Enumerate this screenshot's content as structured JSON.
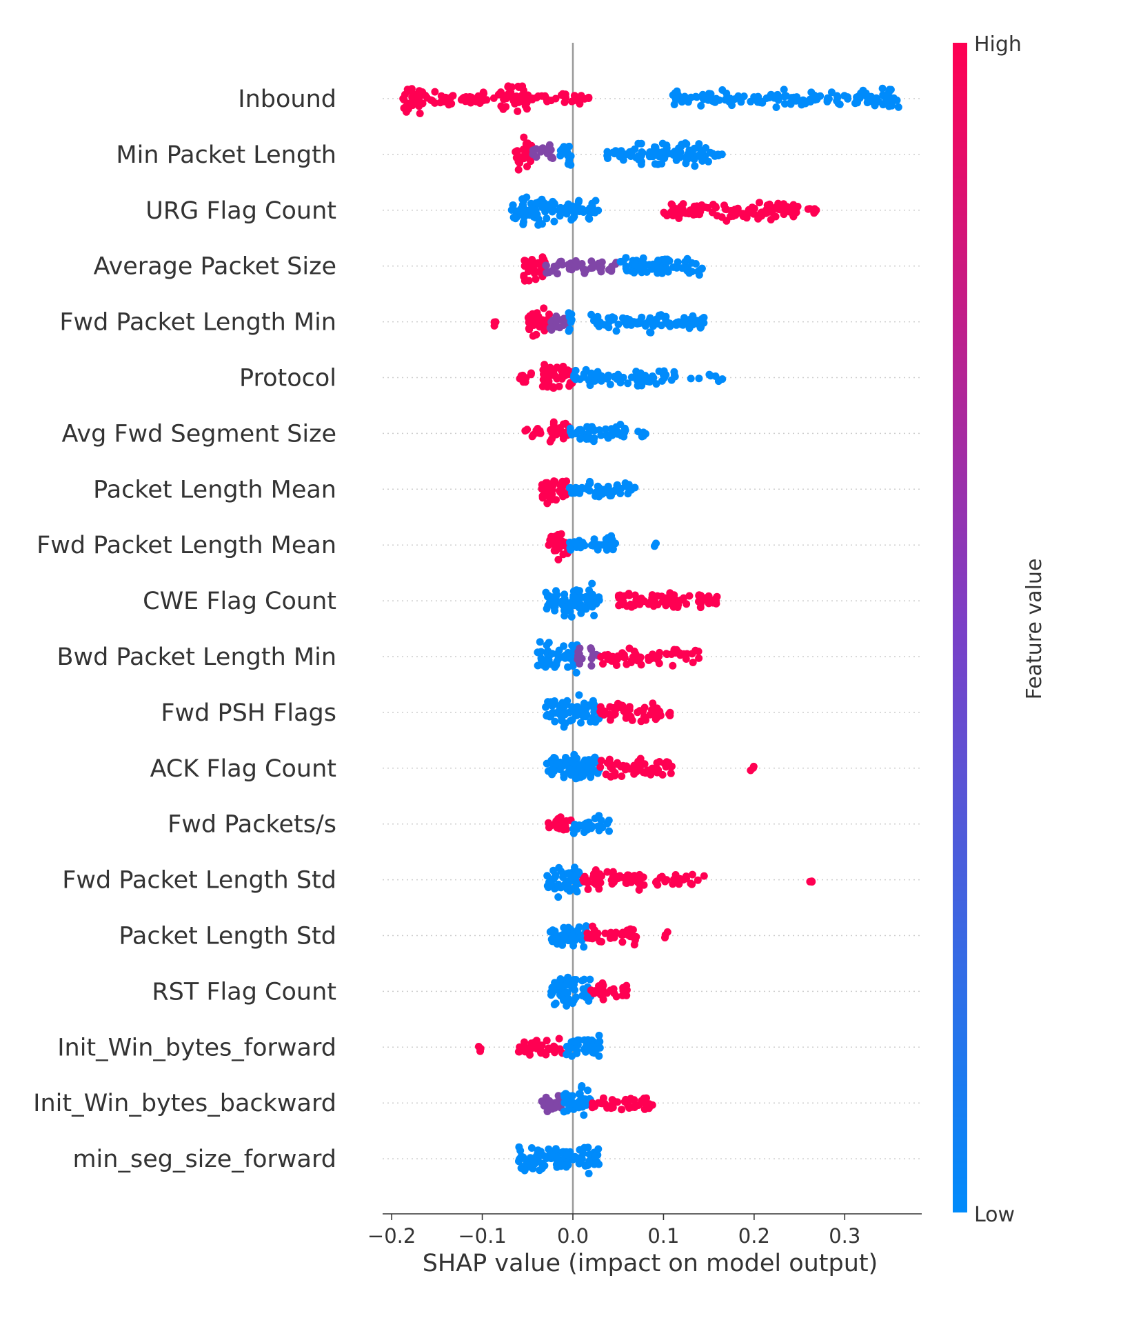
{
  "chart_data": {
    "type": "scatter",
    "title": "",
    "xlabel": "SHAP value (impact on model output)",
    "xlim": [
      -0.21,
      0.385
    ],
    "x_ticks": [
      -0.2,
      -0.1,
      0.0,
      0.1,
      0.2,
      0.3
    ],
    "x_tick_labels": [
      "−0.2",
      "−0.1",
      "0.0",
      "0.1",
      "0.2",
      "0.3"
    ],
    "colorbar": {
      "label": "Feature value",
      "high_label": "High",
      "low_label": "Low",
      "high_color": "#ff0052",
      "low_color": "#008bfb"
    },
    "features": [
      {
        "name": "Inbound",
        "segments": [
          {
            "from": -0.19,
            "to": -0.16,
            "color": "high",
            "density": 1.0
          },
          {
            "from": -0.16,
            "to": -0.08,
            "color": "high",
            "density": 0.35
          },
          {
            "from": -0.08,
            "to": -0.05,
            "color": "high",
            "density": 0.9
          },
          {
            "from": -0.05,
            "to": 0.02,
            "color": "high",
            "density": 0.3
          },
          {
            "from": 0.11,
            "to": 0.34,
            "color": "low",
            "density": 0.45
          },
          {
            "from": 0.34,
            "to": 0.36,
            "color": "low",
            "density": 0.8
          }
        ]
      },
      {
        "name": "Min Packet Length",
        "segments": [
          {
            "from": -0.065,
            "to": -0.045,
            "color": "high",
            "density": 1.0
          },
          {
            "from": -0.045,
            "to": -0.02,
            "color": "mid",
            "density": 0.5
          },
          {
            "from": -0.015,
            "to": -0.002,
            "color": "low",
            "density": 0.8
          },
          {
            "from": 0.035,
            "to": 0.06,
            "color": "low",
            "density": 0.4
          },
          {
            "from": 0.06,
            "to": 0.15,
            "color": "low",
            "density": 0.7
          },
          {
            "from": 0.15,
            "to": 0.165,
            "color": "low",
            "density": 0.2
          }
        ]
      },
      {
        "name": "URG Flag Count",
        "segments": [
          {
            "from": -0.068,
            "to": -0.045,
            "color": "low",
            "density": 0.9
          },
          {
            "from": -0.045,
            "to": -0.02,
            "color": "low",
            "density": 1.0
          },
          {
            "from": -0.02,
            "to": 0.03,
            "color": "low",
            "density": 0.6
          },
          {
            "from": 0.1,
            "to": 0.25,
            "color": "high",
            "density": 0.55
          },
          {
            "from": 0.25,
            "to": 0.27,
            "color": "high",
            "density": 0.2
          }
        ]
      },
      {
        "name": "Average Packet Size",
        "segments": [
          {
            "from": -0.055,
            "to": -0.03,
            "color": "high",
            "density": 1.0
          },
          {
            "from": -0.03,
            "to": 0.0,
            "color": "mid",
            "density": 0.5
          },
          {
            "from": 0.0,
            "to": 0.05,
            "color": "mid",
            "density": 0.45
          },
          {
            "from": 0.05,
            "to": 0.145,
            "color": "low",
            "density": 0.6
          }
        ]
      },
      {
        "name": "Fwd Packet Length Min",
        "segments": [
          {
            "from": -0.087,
            "to": -0.085,
            "color": "high",
            "density": 0.3
          },
          {
            "from": -0.05,
            "to": -0.025,
            "color": "high",
            "density": 1.0
          },
          {
            "from": -0.025,
            "to": -0.005,
            "color": "mid",
            "density": 0.6
          },
          {
            "from": -0.005,
            "to": 0.0,
            "color": "low",
            "density": 0.8
          },
          {
            "from": 0.02,
            "to": 0.145,
            "color": "low",
            "density": 0.55
          }
        ]
      },
      {
        "name": "Protocol",
        "segments": [
          {
            "from": -0.06,
            "to": -0.045,
            "color": "high",
            "density": 0.35
          },
          {
            "from": -0.035,
            "to": -0.0,
            "color": "high",
            "density": 1.0
          },
          {
            "from": 0.0,
            "to": 0.12,
            "color": "low",
            "density": 0.45
          },
          {
            "from": 0.13,
            "to": 0.165,
            "color": "low",
            "density": 0.15
          }
        ]
      },
      {
        "name": "Avg Fwd Segment Size",
        "segments": [
          {
            "from": -0.063,
            "to": -0.035,
            "color": "high",
            "density": 0.25
          },
          {
            "from": -0.025,
            "to": -0.005,
            "color": "high",
            "density": 1.0
          },
          {
            "from": -0.005,
            "to": 0.06,
            "color": "low",
            "density": 0.55
          },
          {
            "from": 0.07,
            "to": 0.085,
            "color": "low",
            "density": 0.25
          }
        ]
      },
      {
        "name": "Packet Length Mean",
        "segments": [
          {
            "from": -0.035,
            "to": -0.005,
            "color": "high",
            "density": 1.0
          },
          {
            "from": -0.005,
            "to": 0.07,
            "color": "low",
            "density": 0.5
          }
        ]
      },
      {
        "name": "Fwd Packet Length Mean",
        "segments": [
          {
            "from": -0.028,
            "to": -0.005,
            "color": "high",
            "density": 1.0
          },
          {
            "from": -0.005,
            "to": 0.05,
            "color": "low",
            "density": 0.5
          },
          {
            "from": 0.09,
            "to": 0.092,
            "color": "low",
            "density": 0.2
          }
        ]
      },
      {
        "name": "CWE Flag Count",
        "segments": [
          {
            "from": -0.03,
            "to": 0.03,
            "color": "low",
            "density": 1.0
          },
          {
            "from": 0.05,
            "to": 0.16,
            "color": "high",
            "density": 0.55
          }
        ]
      },
      {
        "name": "Bwd Packet Length Min",
        "segments": [
          {
            "from": -0.04,
            "to": 0.005,
            "color": "low",
            "density": 1.0
          },
          {
            "from": 0.005,
            "to": 0.03,
            "color": "mid",
            "density": 0.5
          },
          {
            "from": 0.03,
            "to": 0.14,
            "color": "high",
            "density": 0.5
          }
        ]
      },
      {
        "name": "Fwd PSH Flags",
        "segments": [
          {
            "from": -0.03,
            "to": 0.03,
            "color": "low",
            "density": 1.0
          },
          {
            "from": 0.03,
            "to": 0.1,
            "color": "high",
            "density": 0.55
          },
          {
            "from": 0.105,
            "to": 0.11,
            "color": "high",
            "density": 0.2
          }
        ]
      },
      {
        "name": "ACK Flag Count",
        "segments": [
          {
            "from": -0.03,
            "to": 0.03,
            "color": "low",
            "density": 1.0
          },
          {
            "from": 0.03,
            "to": 0.11,
            "color": "high",
            "density": 0.55
          },
          {
            "from": 0.195,
            "to": 0.2,
            "color": "high",
            "density": 0.2
          }
        ]
      },
      {
        "name": "Fwd Packets/s",
        "segments": [
          {
            "from": -0.03,
            "to": 0.0,
            "color": "high",
            "density": 0.7
          },
          {
            "from": 0.0,
            "to": 0.04,
            "color": "low",
            "density": 0.5
          }
        ]
      },
      {
        "name": "Fwd Packet Length Std",
        "segments": [
          {
            "from": -0.03,
            "to": 0.01,
            "color": "low",
            "density": 1.0
          },
          {
            "from": 0.01,
            "to": 0.08,
            "color": "high",
            "density": 0.55
          },
          {
            "from": 0.09,
            "to": 0.145,
            "color": "high",
            "density": 0.3
          },
          {
            "from": 0.26,
            "to": 0.265,
            "color": "high",
            "density": 0.2
          }
        ]
      },
      {
        "name": "Packet Length Std",
        "segments": [
          {
            "from": -0.025,
            "to": 0.015,
            "color": "low",
            "density": 1.0
          },
          {
            "from": 0.015,
            "to": 0.07,
            "color": "high",
            "density": 0.5
          },
          {
            "from": 0.1,
            "to": 0.105,
            "color": "high",
            "density": 0.2
          }
        ]
      },
      {
        "name": "RST Flag Count",
        "segments": [
          {
            "from": -0.025,
            "to": 0.02,
            "color": "low",
            "density": 1.0
          },
          {
            "from": 0.02,
            "to": 0.06,
            "color": "high",
            "density": 0.5
          }
        ]
      },
      {
        "name": "Init_Win_bytes_forward",
        "segments": [
          {
            "from": -0.105,
            "to": -0.1,
            "color": "high",
            "density": 0.2
          },
          {
            "from": -0.06,
            "to": -0.01,
            "color": "high",
            "density": 0.7
          },
          {
            "from": -0.01,
            "to": 0.03,
            "color": "low",
            "density": 0.8
          }
        ]
      },
      {
        "name": "Init_Win_bytes_backward",
        "segments": [
          {
            "from": -0.035,
            "to": -0.01,
            "color": "mid",
            "density": 0.6
          },
          {
            "from": -0.01,
            "to": 0.02,
            "color": "low",
            "density": 1.0
          },
          {
            "from": 0.02,
            "to": 0.09,
            "color": "high",
            "density": 0.5
          }
        ]
      },
      {
        "name": "min_seg_size_forward",
        "segments": [
          {
            "from": -0.06,
            "to": 0.03,
            "color": "low",
            "density": 0.9
          }
        ]
      }
    ]
  }
}
